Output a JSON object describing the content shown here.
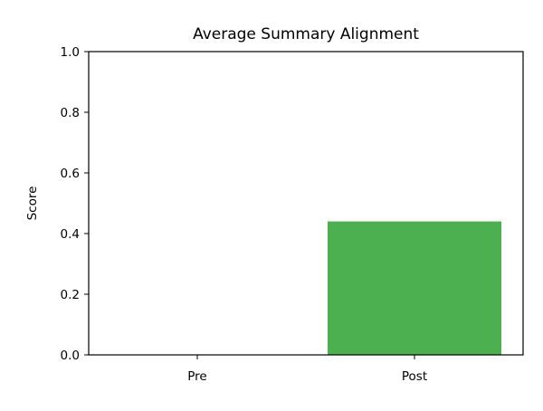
{
  "chart_data": {
    "type": "bar",
    "title": "Average Summary Alignment",
    "xlabel": "",
    "ylabel": "Score",
    "categories": [
      "Pre",
      "Post"
    ],
    "values": [
      0.0,
      0.44
    ],
    "ylim": [
      0,
      1.0
    ],
    "yticks": [
      "0.0",
      "0.2",
      "0.4",
      "0.6",
      "0.8",
      "1.0"
    ],
    "bar_color": "#4caf50",
    "grid": false,
    "legend": "none"
  }
}
